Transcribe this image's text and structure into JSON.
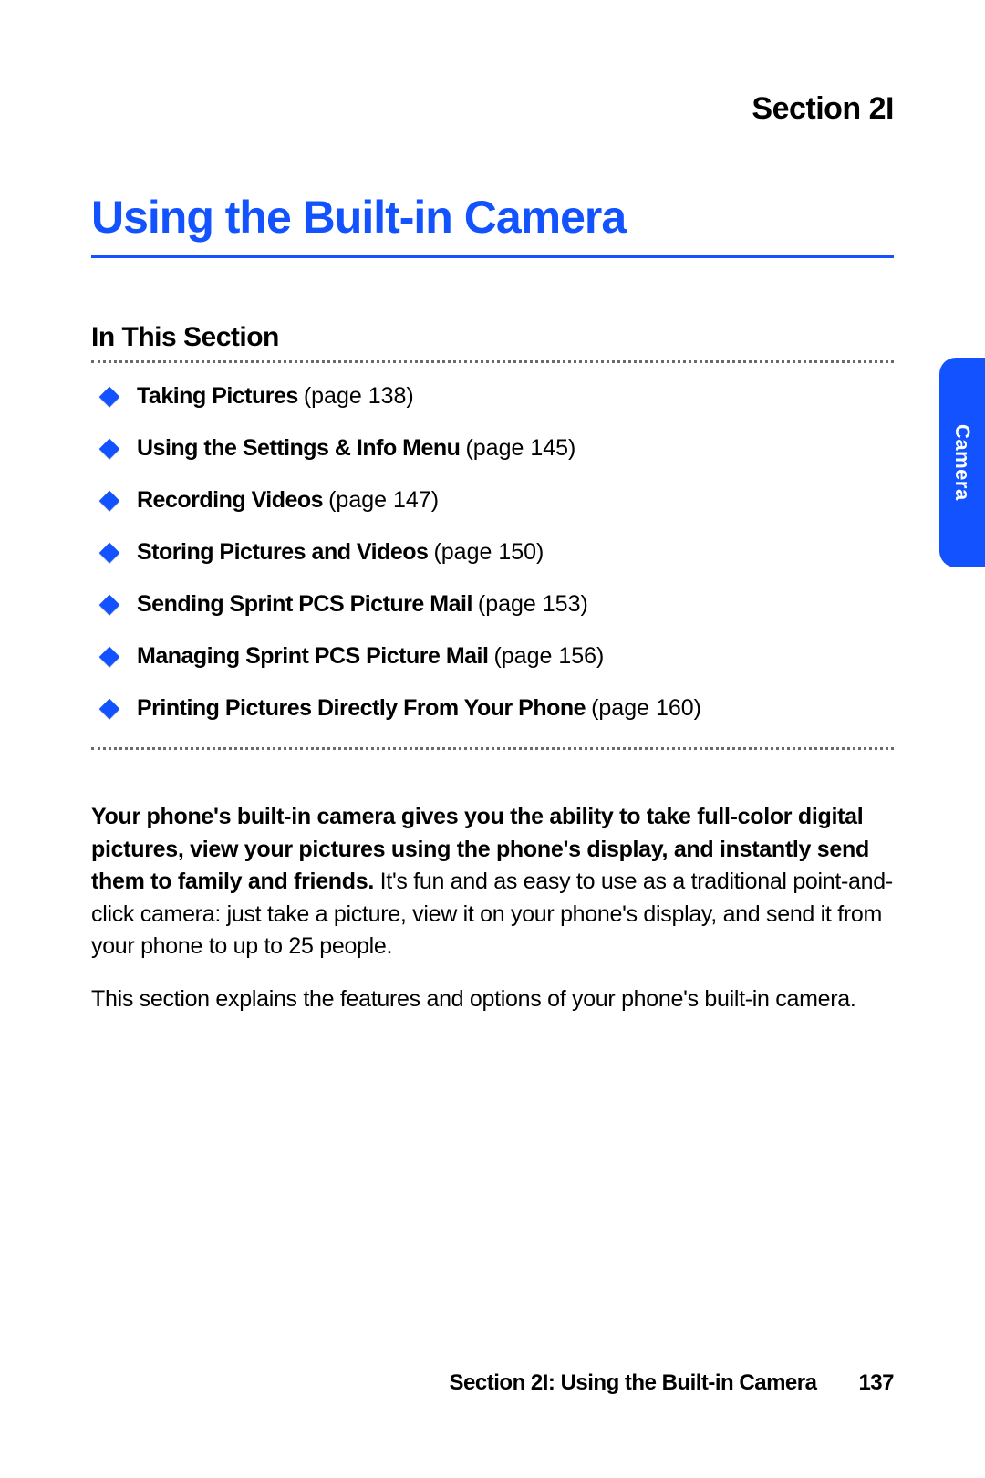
{
  "colors": {
    "accent": "#1252ff",
    "text": "#000000",
    "dotted": "#6b6b6b",
    "tab_bg": "#1252ff",
    "tab_text": "#ffffff",
    "background": "#ffffff"
  },
  "fonts": {
    "section_label_size": 34,
    "main_title_size": 50,
    "subheading_size": 30,
    "toc_size": 25,
    "body_size": 25,
    "footer_size": 24,
    "tab_size": 22
  },
  "section_label": "Section 2I",
  "main_title": "Using the Built-in Camera",
  "subheading": "In This Section",
  "side_tab_label": "Camera",
  "toc": [
    {
      "title": "Taking Pictures",
      "page": "(page 138)"
    },
    {
      "title": "Using the Settings & Info Menu",
      "page": "(page 145)"
    },
    {
      "title": "Recording Videos",
      "page": "(page 147)"
    },
    {
      "title": "Storing Pictures and Videos",
      "page": "(page 150)"
    },
    {
      "title": "Sending Sprint PCS Picture Mail",
      "page": "(page 153)"
    },
    {
      "title": "Managing Sprint PCS Picture Mail",
      "page": "(page 156)"
    },
    {
      "title": "Printing Pictures Directly From Your Phone",
      "page": "(page 160)"
    }
  ],
  "body": {
    "bold_run": "Your phone's built-in camera gives you the ability to take full-color digital pictures, view your pictures using the phone's display, and instantly send them to family and friends.",
    "rest_p1": " It's fun and as easy to use as a traditional point-and-click camera: just take a picture, view it on your phone's display, and send it from your phone to up to 25 people.",
    "p2": "This section explains the features and options of your phone's built-in camera."
  },
  "footer": {
    "text": "Section 2I: Using the Built-in Camera",
    "page_number": "137"
  }
}
